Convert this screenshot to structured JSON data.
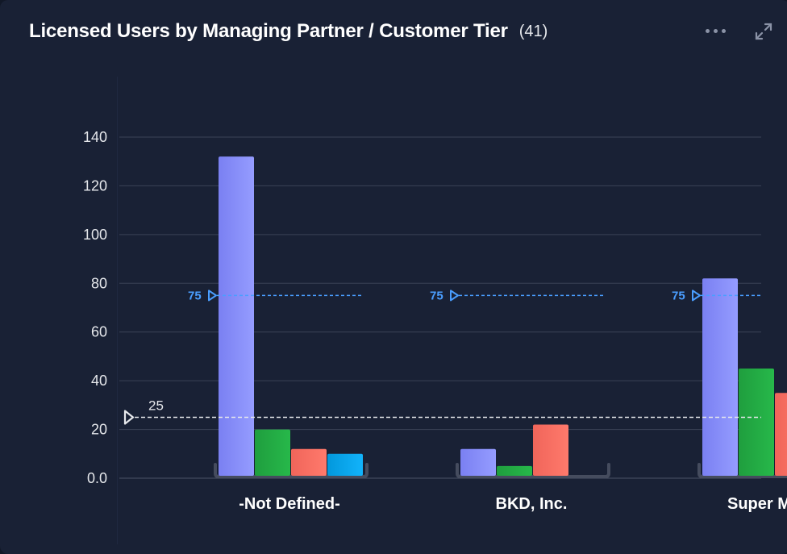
{
  "header": {
    "title": "Licensed Users by Managing Partner / Customer Tier",
    "count": "(41)"
  },
  "icons": {
    "more": "more-horizontal-icon",
    "expand": "expand-icon"
  },
  "colors": {
    "background": "#192135",
    "grid": "#3a4256",
    "series": [
      "#8a92fe",
      "#22ad44",
      "#fd6e62",
      "#02a8f0"
    ],
    "ref_blue": "#4a9eff",
    "ref_white": "#e5e7eb"
  },
  "chart_data": {
    "type": "bar",
    "categories": [
      "-Not Defined-",
      "BKD, Inc.",
      "Super M"
    ],
    "series": [
      {
        "values": [
          132,
          12,
          82
        ]
      },
      {
        "values": [
          20,
          5,
          45
        ]
      },
      {
        "values": [
          12,
          22,
          35
        ]
      },
      {
        "values": [
          10,
          null,
          null
        ]
      }
    ],
    "ylim": [
      0,
      140
    ],
    "yticks": [
      0,
      20,
      40,
      60,
      80,
      100,
      120,
      140
    ],
    "ytick_labels": [
      "0.0",
      "20",
      "40",
      "60",
      "80",
      "100",
      "120",
      "140"
    ],
    "grid": true,
    "reference_lines": [
      {
        "value": 75,
        "label": "75",
        "scope": "per-category"
      },
      {
        "value": 25,
        "label": "25",
        "scope": "all"
      }
    ]
  }
}
